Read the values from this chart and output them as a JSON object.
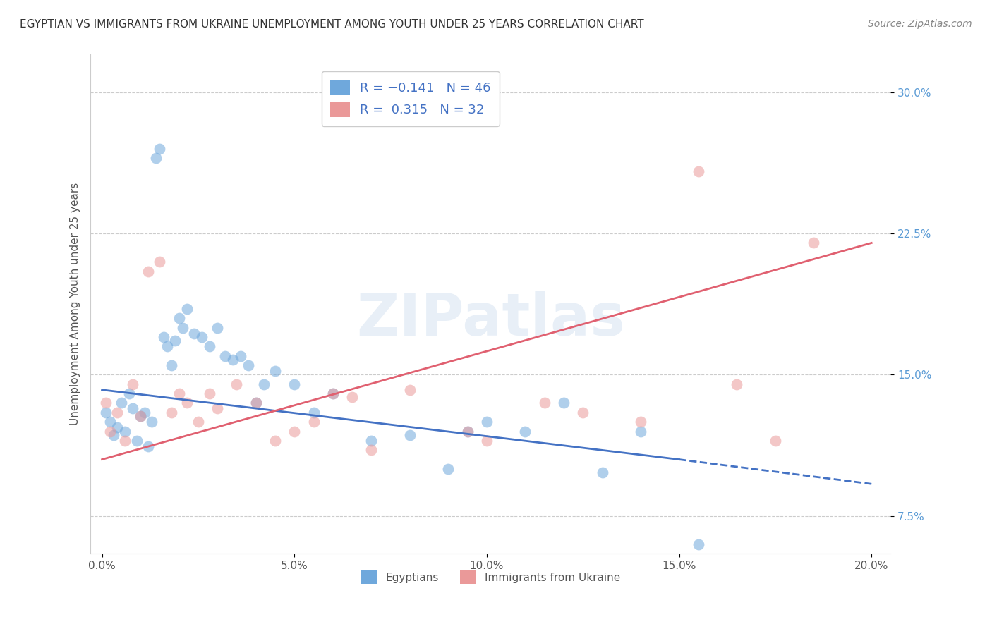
{
  "title": "EGYPTIAN VS IMMIGRANTS FROM UKRAINE UNEMPLOYMENT AMONG YOUTH UNDER 25 YEARS CORRELATION CHART",
  "source": "Source: ZipAtlas.com",
  "ylabel": "Unemployment Among Youth under 25 years",
  "xlabel_ticks": [
    "0.0%",
    "5.0%",
    "10.0%",
    "15.0%",
    "20.0%"
  ],
  "xlabel_vals": [
    0.0,
    5.0,
    10.0,
    15.0,
    20.0
  ],
  "ylabel_ticks": [
    "7.5%",
    "15.0%",
    "22.5%",
    "30.0%"
  ],
  "ylabel_vals": [
    7.5,
    15.0,
    22.5,
    30.0
  ],
  "xmin": -0.3,
  "xmax": 20.5,
  "ymin": 5.5,
  "ymax": 32.0,
  "egyptians_R": -0.141,
  "egyptians_N": 46,
  "ukraine_R": 0.315,
  "ukraine_N": 32,
  "blue_color": "#6fa8dc",
  "pink_color": "#ea9999",
  "blue_line_color": "#4472c4",
  "pink_line_color": "#e06070",
  "legend_labels": [
    "Egyptians",
    "Immigrants from Ukraine"
  ],
  "watermark": "ZIPatlas",
  "blue_line_x0": 0.0,
  "blue_line_y0": 14.2,
  "blue_line_x1": 15.0,
  "blue_line_y1": 10.5,
  "blue_dash_x0": 15.0,
  "blue_dash_y0": 10.5,
  "blue_dash_x1": 20.0,
  "blue_dash_y1": 9.2,
  "pink_line_x0": 0.0,
  "pink_line_y0": 10.5,
  "pink_line_x1": 20.0,
  "pink_line_y1": 22.0,
  "egyptians_x": [
    0.1,
    0.2,
    0.3,
    0.4,
    0.5,
    0.6,
    0.7,
    0.8,
    0.9,
    1.0,
    1.1,
    1.2,
    1.3,
    1.4,
    1.5,
    1.6,
    1.7,
    1.8,
    1.9,
    2.0,
    2.1,
    2.2,
    2.4,
    2.6,
    2.8,
    3.0,
    3.2,
    3.4,
    3.6,
    3.8,
    4.0,
    4.2,
    4.5,
    5.0,
    5.5,
    6.0,
    7.0,
    8.0,
    9.0,
    9.5,
    10.0,
    11.0,
    12.0,
    13.0,
    14.0,
    15.5
  ],
  "egyptians_y": [
    13.0,
    12.5,
    11.8,
    12.2,
    13.5,
    12.0,
    14.0,
    13.2,
    11.5,
    12.8,
    13.0,
    11.2,
    12.5,
    26.5,
    27.0,
    17.0,
    16.5,
    15.5,
    16.8,
    18.0,
    17.5,
    18.5,
    17.2,
    17.0,
    16.5,
    17.5,
    16.0,
    15.8,
    16.0,
    15.5,
    13.5,
    14.5,
    15.2,
    14.5,
    13.0,
    14.0,
    11.5,
    11.8,
    10.0,
    12.0,
    12.5,
    12.0,
    13.5,
    9.8,
    12.0,
    6.0
  ],
  "ukraine_x": [
    0.1,
    0.2,
    0.4,
    0.6,
    0.8,
    1.0,
    1.2,
    1.5,
    1.8,
    2.0,
    2.2,
    2.5,
    2.8,
    3.0,
    3.5,
    4.0,
    4.5,
    5.0,
    5.5,
    6.0,
    6.5,
    7.0,
    8.0,
    9.5,
    10.0,
    11.5,
    12.5,
    14.0,
    15.5,
    16.5,
    17.5,
    18.5
  ],
  "ukraine_y": [
    13.5,
    12.0,
    13.0,
    11.5,
    14.5,
    12.8,
    20.5,
    21.0,
    13.0,
    14.0,
    13.5,
    12.5,
    14.0,
    13.2,
    14.5,
    13.5,
    11.5,
    12.0,
    12.5,
    14.0,
    13.8,
    11.0,
    14.2,
    12.0,
    11.5,
    13.5,
    13.0,
    12.5,
    25.8,
    14.5,
    11.5,
    22.0
  ]
}
